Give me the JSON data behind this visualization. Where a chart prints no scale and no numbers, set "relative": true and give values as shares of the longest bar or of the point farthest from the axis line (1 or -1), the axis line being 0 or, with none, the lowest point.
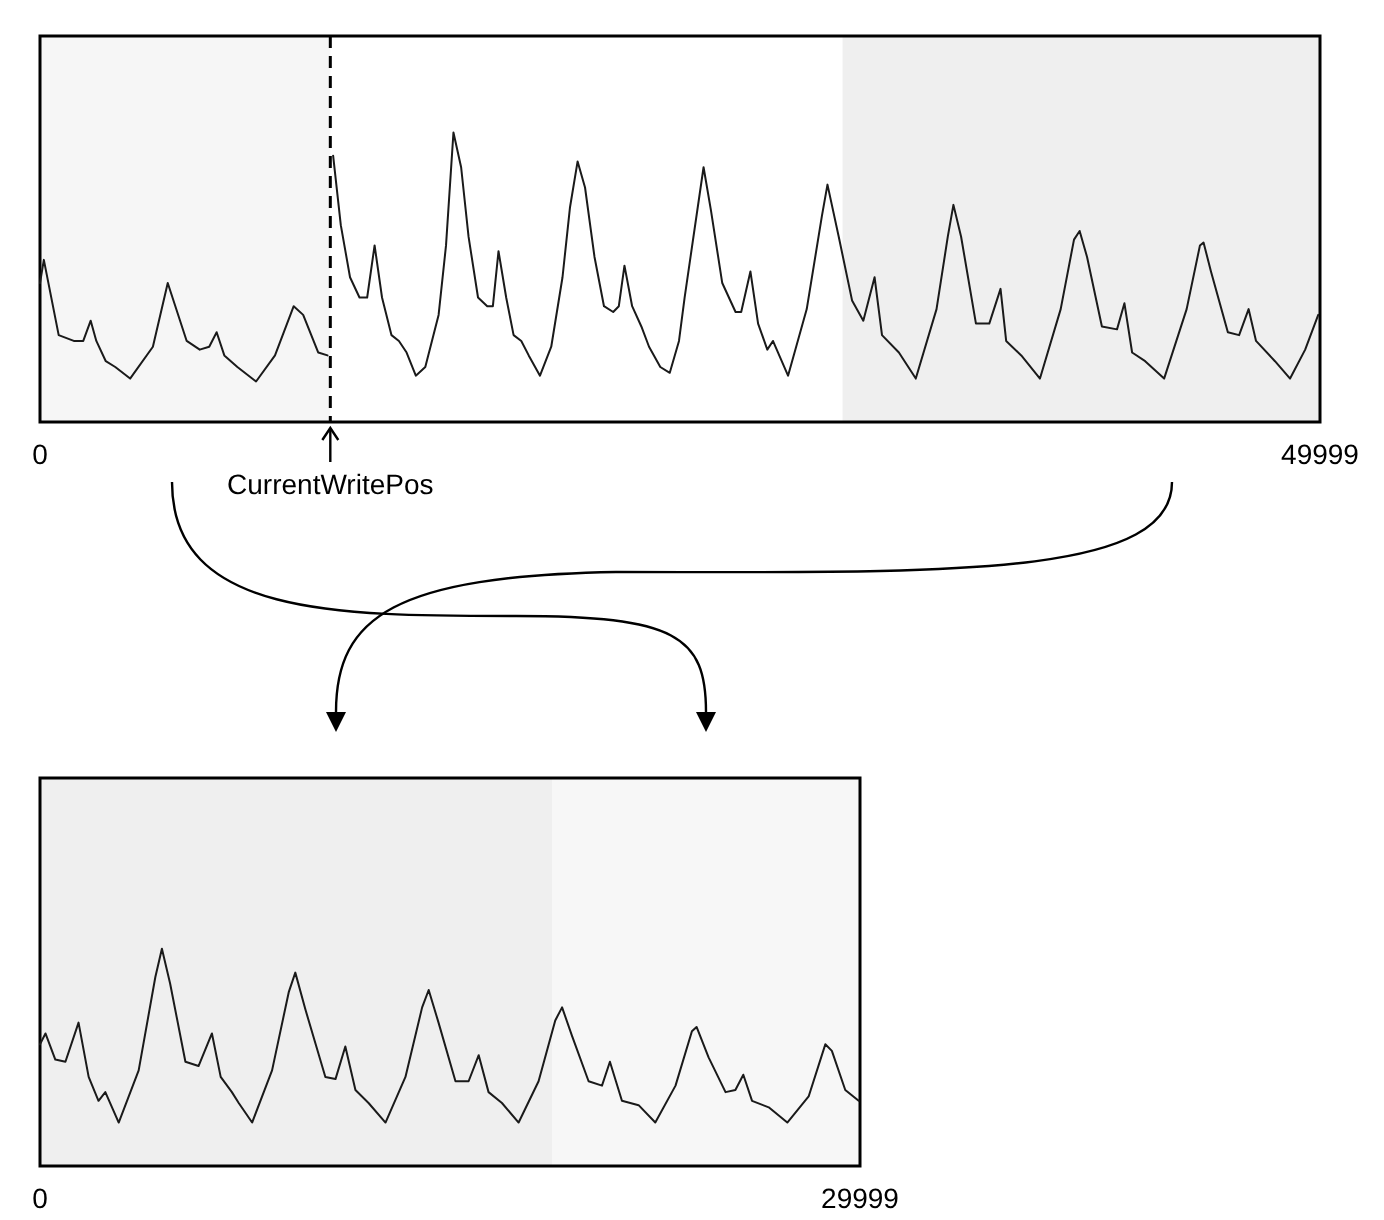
{
  "chart_data": [
    {
      "type": "line",
      "relative": true,
      "tick_labels": "x",
      "xlim": [
        0,
        49999
      ],
      "xticks": [
        0,
        49999
      ],
      "bands": [
        {
          "axis": "x",
          "from": 0,
          "to": 11340,
          "color": "#f6f6f6"
        },
        {
          "axis": "x",
          "from": 31350,
          "to": 49999,
          "color": "#efefef"
        }
      ],
      "ref_lines": [
        {
          "axis": "x",
          "value": 11340,
          "label": "CurrentWritePos",
          "line_style": "dashed",
          "color": "#000000"
        }
      ],
      "x": [
        0,
        150,
        730,
        1320,
        1690,
        1980,
        2200,
        2570,
        2940,
        3520,
        4410,
        4990,
        5730,
        6240,
        6610,
        6900,
        7200,
        7710,
        8440,
        9180,
        9910,
        10280,
        10870,
        11230,
        11340,
        11450,
        11750,
        12110,
        12480,
        12780,
        13070,
        13360,
        13730,
        14020,
        14320,
        14680,
        15050,
        15570,
        15860,
        16150,
        16450,
        16740,
        17110,
        17470,
        17690,
        17910,
        18210,
        18500,
        18800,
        19090,
        19530,
        19970,
        20410,
        20700,
        21000,
        21290,
        21660,
        22030,
        22390,
        22610,
        22830,
        23130,
        23490,
        23790,
        24230,
        24600,
        24960,
        25180,
        25920,
        26210,
        26650,
        27170,
        27390,
        27750,
        28050,
        28410,
        28630,
        29220,
        29950,
        30540,
        30760,
        31200,
        31720,
        32160,
        32600,
        32890,
        33550,
        34210,
        35020,
        35460,
        35680,
        35980,
        36560,
        37080,
        37520,
        37740,
        38330,
        39060,
        39870,
        40390,
        40610,
        40900,
        41480,
        42070,
        42360,
        42660,
        43170,
        43910,
        44790,
        45310,
        45450,
        45740,
        46400,
        46840,
        47210,
        47500,
        48240,
        48830,
        49420,
        49930
      ],
      "series": [
        {
          "color": "#1a1a1a",
          "values": [
            0.48,
            0.56,
            0.3,
            0.28,
            0.28,
            0.35,
            0.28,
            0.21,
            0.19,
            0.15,
            0.26,
            0.48,
            0.28,
            0.25,
            0.26,
            0.31,
            0.23,
            0.19,
            0.14,
            0.23,
            0.4,
            0.37,
            0.24,
            0.23,
            null,
            0.92,
            0.68,
            0.5,
            0.43,
            0.43,
            0.61,
            0.43,
            0.3,
            0.28,
            0.24,
            0.16,
            0.19,
            0.37,
            0.61,
            1,
            0.88,
            0.64,
            0.43,
            0.4,
            0.4,
            0.59,
            0.43,
            0.3,
            0.28,
            0.23,
            0.16,
            0.26,
            0.5,
            0.74,
            0.9,
            0.81,
            0.57,
            0.4,
            0.38,
            0.4,
            0.54,
            0.4,
            0.33,
            0.26,
            0.19,
            0.17,
            0.28,
            0.43,
            0.88,
            0.73,
            0.48,
            0.38,
            0.38,
            0.52,
            0.34,
            0.25,
            0.28,
            0.16,
            0.39,
            0.71,
            0.82,
            0.64,
            0.42,
            0.35,
            0.5,
            0.3,
            0.24,
            0.15,
            0.39,
            0.64,
            0.75,
            0.64,
            0.34,
            0.34,
            0.46,
            0.28,
            0.23,
            0.15,
            0.39,
            0.63,
            0.66,
            0.57,
            0.33,
            0.32,
            0.41,
            0.24,
            0.21,
            0.15,
            0.39,
            0.61,
            0.62,
            0.52,
            0.31,
            0.3,
            0.39,
            0.28,
            0.21,
            0.15,
            0.25,
            0.37
          ]
        }
      ]
    },
    {
      "type": "line",
      "relative": true,
      "tick_labels": "x",
      "xlim": [
        0,
        29999
      ],
      "xticks": [
        0,
        29999
      ],
      "bands": [
        {
          "axis": "x",
          "from": 0,
          "to": 18730,
          "color": "#efefef"
        },
        {
          "axis": "x",
          "from": 18730,
          "to": 29999,
          "color": "#f7f7f7"
        }
      ],
      "x": [
        0,
        200,
        560,
        930,
        1410,
        1780,
        2140,
        2390,
        2880,
        3610,
        4220,
        4460,
        4760,
        5320,
        5800,
        6290,
        6610,
        7020,
        7270,
        7760,
        8490,
        9100,
        9340,
        9710,
        10440,
        10810,
        11170,
        11540,
        12020,
        12640,
        13370,
        13980,
        14220,
        14580,
        15200,
        15680,
        16050,
        16410,
        16900,
        17510,
        18240,
        18850,
        19100,
        19460,
        20070,
        20560,
        20850,
        21290,
        21900,
        22510,
        23250,
        23850,
        24020,
        24460,
        25080,
        25440,
        25730,
        26050,
        26660,
        27340,
        28120,
        28730,
        28970,
        29460,
        29950
      ],
      "series": [
        {
          "color": "#1a1a1a",
          "values": [
            0.56,
            0.61,
            0.49,
            0.48,
            0.66,
            0.41,
            0.3,
            0.34,
            0.2,
            0.44,
            0.87,
            1,
            0.84,
            0.48,
            0.46,
            0.61,
            0.41,
            0.34,
            0.29,
            0.2,
            0.44,
            0.8,
            0.89,
            0.72,
            0.41,
            0.4,
            0.55,
            0.35,
            0.29,
            0.2,
            0.41,
            0.73,
            0.81,
            0.66,
            0.39,
            0.39,
            0.51,
            0.34,
            0.29,
            0.2,
            0.39,
            0.67,
            0.73,
            0.6,
            0.39,
            0.37,
            0.48,
            0.3,
            0.28,
            0.2,
            0.37,
            0.62,
            0.64,
            0.5,
            0.34,
            0.35,
            0.42,
            0.3,
            0.27,
            0.2,
            0.32,
            0.56,
            0.53,
            0.35,
            0.3
          ]
        }
      ]
    }
  ]
}
